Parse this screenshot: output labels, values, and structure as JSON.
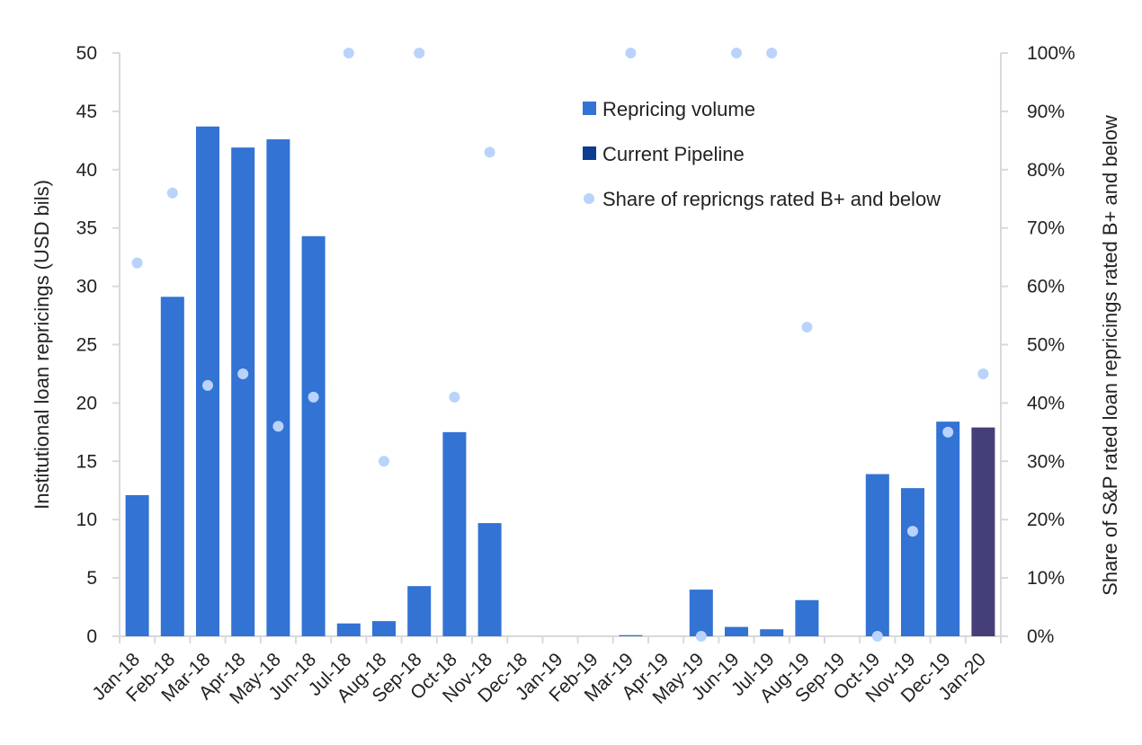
{
  "chart_data": {
    "type": "bar",
    "categories": [
      "Jan-18",
      "Feb-18",
      "Mar-18",
      "Apr-18",
      "May-18",
      "Jun-18",
      "Jul-18",
      "Aug-18",
      "Sep-18",
      "Oct-18",
      "Nov-18",
      "Dec-18",
      "Jan-19",
      "Feb-19",
      "Mar-19",
      "Apr-19",
      "May-19",
      "Jun-19",
      "Jul-19",
      "Aug-19",
      "Sep-19",
      "Oct-19",
      "Nov-19",
      "Dec-19",
      "Jan-20"
    ],
    "series": [
      {
        "name": "Repricing volume",
        "type": "bar",
        "axis": "left",
        "color": "#3273d4",
        "values": [
          12.1,
          29.1,
          43.7,
          41.9,
          42.6,
          34.3,
          1.1,
          1.3,
          4.3,
          17.5,
          9.7,
          0,
          0,
          0,
          0.1,
          0,
          4.0,
          0.8,
          0.6,
          3.1,
          0,
          13.9,
          12.7,
          18.4,
          null
        ]
      },
      {
        "name": "Current Pipeline",
        "type": "bar",
        "axis": "left",
        "color": "#453f78",
        "legend_color": "#0b3d91",
        "values": [
          null,
          null,
          null,
          null,
          null,
          null,
          null,
          null,
          null,
          null,
          null,
          null,
          null,
          null,
          null,
          null,
          null,
          null,
          null,
          null,
          null,
          null,
          null,
          null,
          17.9
        ]
      },
      {
        "name": "Share of repricngs rated B+ and below",
        "type": "scatter",
        "axis": "right",
        "color": "#b9d3fb",
        "values": [
          0.64,
          0.76,
          0.43,
          0.45,
          0.36,
          0.41,
          1.0,
          0.3,
          1.0,
          0.41,
          0.83,
          null,
          null,
          null,
          1.0,
          null,
          0.0,
          1.0,
          1.0,
          0.53,
          null,
          0.0,
          0.18,
          0.35,
          0.45
        ]
      }
    ],
    "ylabel": "Institutional loan repricings (USD bils)",
    "y2label": "Share of S&P rated loan repricings rated B+ and below",
    "ylim": [
      0,
      50
    ],
    "y2lim": [
      0,
      1
    ],
    "yticks": [
      "0",
      "5",
      "10",
      "15",
      "20",
      "25",
      "30",
      "35",
      "40",
      "45",
      "50"
    ],
    "y2ticks": [
      "0%",
      "10%",
      "20%",
      "30%",
      "40%",
      "50%",
      "60%",
      "70%",
      "80%",
      "90%",
      "100%"
    ],
    "grid": false,
    "legend_position": "top-right",
    "axis_color": "#d9d9d9"
  }
}
